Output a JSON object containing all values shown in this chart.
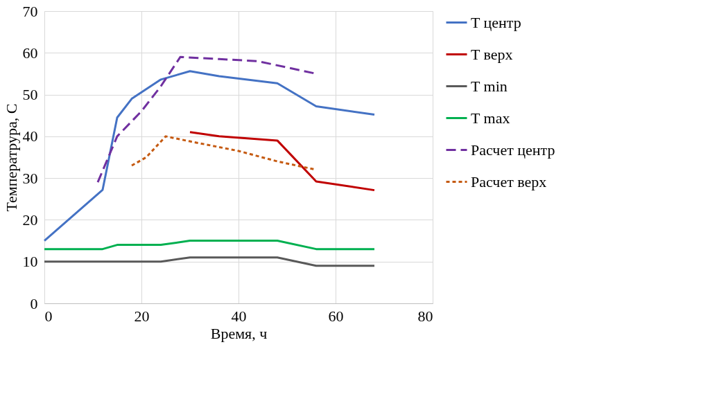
{
  "chart_data": {
    "type": "line",
    "xlabel": "Время, ч",
    "ylabel": "Темпeратрура, С",
    "xlim": [
      0,
      80
    ],
    "xticks": [
      0,
      20,
      40,
      60,
      80
    ],
    "ylim": [
      0,
      70
    ],
    "yticks": [
      0,
      10,
      20,
      30,
      40,
      50,
      60,
      70
    ],
    "grid": true,
    "legend": "right",
    "marker": "none",
    "series": [
      {
        "name": "T центр",
        "color": "#4472c4",
        "line_style": "solid",
        "x": [
          0,
          12,
          15,
          18,
          24,
          30,
          36,
          48,
          56,
          68
        ],
        "values": [
          15,
          27.2,
          44.5,
          49,
          53.6,
          55.6,
          54.4,
          52.7,
          47.2,
          45.2
        ]
      },
      {
        "name": "T верх",
        "color": "#c00000",
        "line_style": "solid",
        "x": [
          30,
          36,
          48,
          56,
          68
        ],
        "values": [
          41,
          40,
          39,
          29.2,
          27.1
        ]
      },
      {
        "name": "T min",
        "color": "#595959",
        "line_style": "solid",
        "x": [
          0,
          24,
          30,
          48,
          56,
          68
        ],
        "values": [
          10,
          10,
          11,
          11,
          9,
          9
        ]
      },
      {
        "name": "T max",
        "color": "#00b050",
        "line_style": "solid",
        "x": [
          0,
          12,
          15,
          24,
          30,
          48,
          56,
          68
        ],
        "values": [
          13,
          13,
          14,
          14,
          15,
          15,
          13,
          13
        ]
      },
      {
        "name": "Расчет центр",
        "color": "#7030a0",
        "line_style": "dashed",
        "x": [
          11,
          15,
          20,
          24,
          28,
          36,
          44,
          56
        ],
        "values": [
          29,
          40,
          46,
          52,
          59,
          58.5,
          58,
          55
        ]
      },
      {
        "name": "Расчет верх",
        "color": "#c55a11",
        "line_style": "dotted",
        "x": [
          18,
          21,
          25,
          30,
          40,
          48,
          56
        ],
        "values": [
          33,
          35,
          40,
          38.8,
          36.5,
          34,
          32
        ]
      }
    ]
  }
}
